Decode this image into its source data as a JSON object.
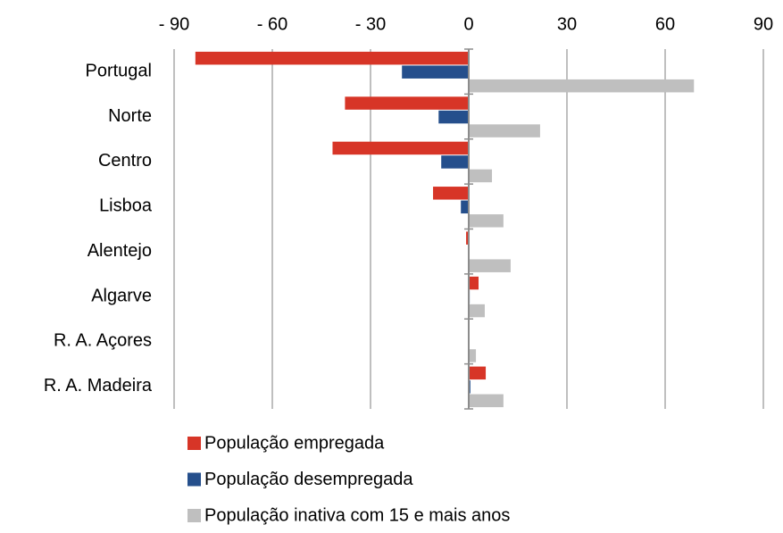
{
  "chart_data": {
    "type": "hbar",
    "categories": [
      "Portugal",
      "Norte",
      "Centro",
      "Lisboa",
      "Alentejo",
      "Algarve",
      "R. A. Açores",
      "R. A. Madeira"
    ],
    "series": [
      {
        "name": "População empregada",
        "color": "#d73527",
        "values": [
          -83.5,
          -37.8,
          -41.6,
          -10.9,
          -0.8,
          3.0,
          0,
          5.2
        ]
      },
      {
        "name": "População desempregada",
        "color": "#254f8c",
        "values": [
          -20.4,
          -9.2,
          -8.4,
          -2.4,
          -0.1,
          0.3,
          0.2,
          0.5
        ]
      },
      {
        "name": "População inativa com 15 e mais anos",
        "color": "#bfbfbf",
        "values": [
          68.8,
          21.8,
          7.1,
          10.6,
          12.8,
          4.9,
          2.2,
          10.6
        ]
      }
    ],
    "xlim": [
      -90,
      90
    ],
    "xticks": [
      {
        "value": -90,
        "label": "- 90"
      },
      {
        "value": -60,
        "label": "- 60"
      },
      {
        "value": -30,
        "label": "- 30"
      },
      0,
      30,
      60,
      90
    ],
    "grid": true,
    "legend": "bottom"
  }
}
